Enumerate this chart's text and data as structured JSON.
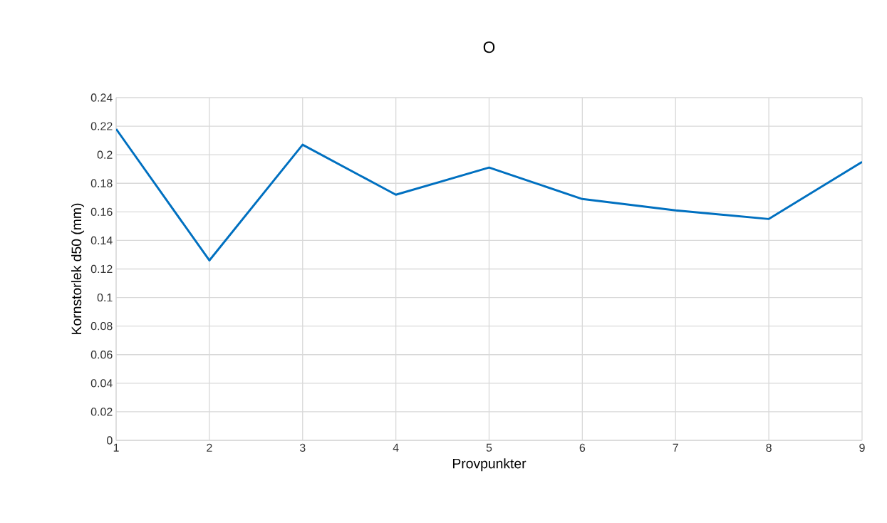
{
  "chart_data": {
    "type": "line",
    "title": "O",
    "xlabel": "Provpunkter",
    "ylabel": "Kornstorlek d50 (mm)",
    "x": [
      1,
      2,
      3,
      4,
      5,
      6,
      7,
      8,
      9
    ],
    "values": [
      0.218,
      0.126,
      0.207,
      0.172,
      0.191,
      0.169,
      0.161,
      0.155,
      0.195
    ],
    "color": "#0070c0",
    "xlim": [
      1,
      9
    ],
    "xticks": [
      1,
      2,
      3,
      4,
      5,
      6,
      7,
      8,
      9
    ],
    "ylim": [
      0,
      0.24
    ],
    "yticks": [
      0,
      0.02,
      0.04,
      0.06,
      0.08,
      0.1,
      0.12,
      0.14,
      0.16,
      0.18,
      0.2,
      0.22,
      0.24
    ],
    "grid": true
  }
}
